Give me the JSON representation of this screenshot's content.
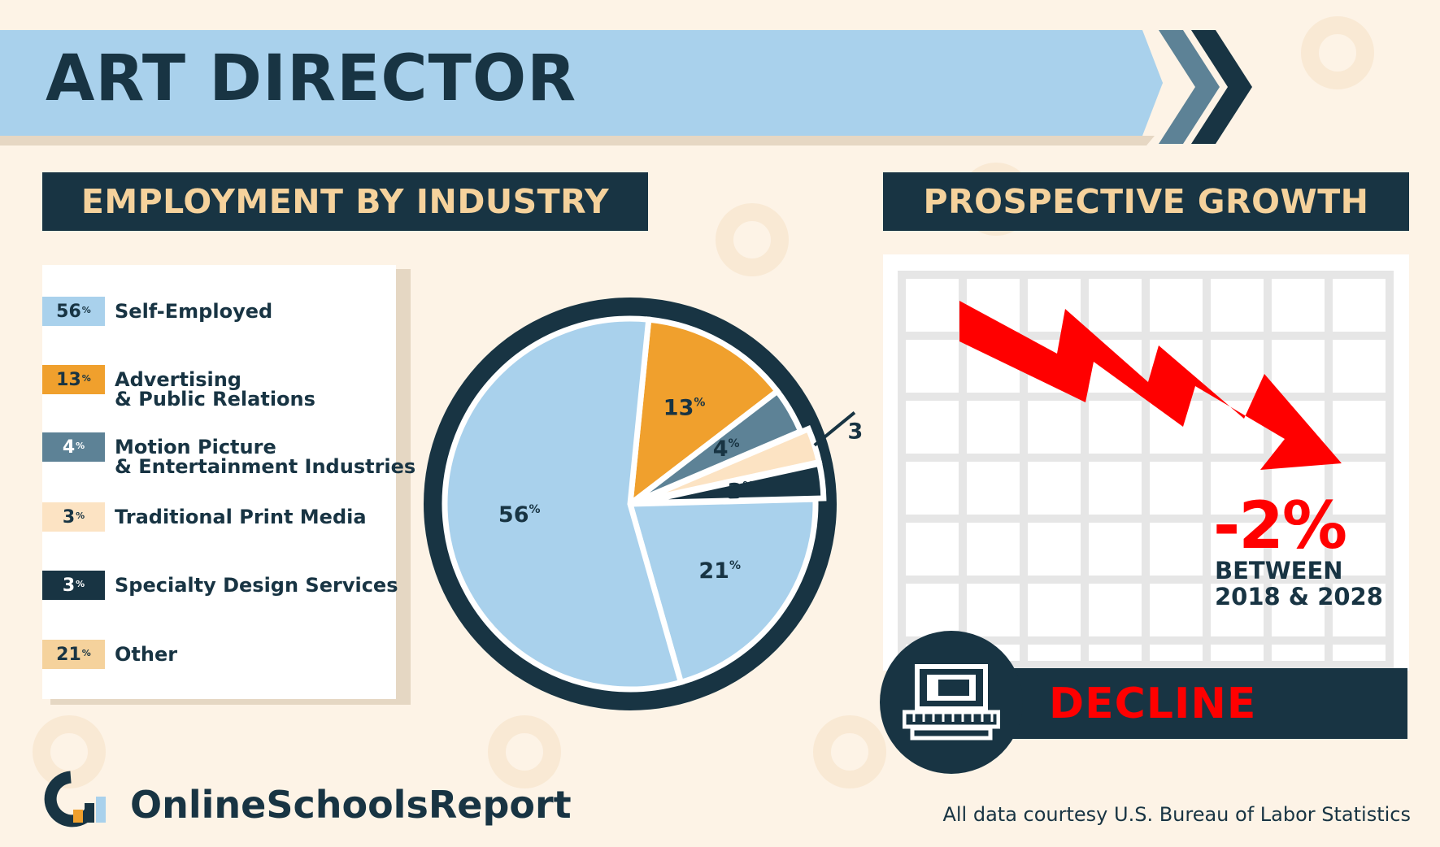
{
  "page": {
    "title": "ART DIRECTOR",
    "source": "All data courtesy U.S. Bureau of Labor Statistics",
    "brand": "OnlineSchoolsReport"
  },
  "sections": {
    "employment": "EMPLOYMENT BY INDUSTRY",
    "growth": "PROSPECTIVE GROWTH"
  },
  "growth": {
    "value": "-2%",
    "period": "BETWEEN\n2018 & 2028",
    "status": "DECLINE"
  },
  "legend": [
    {
      "pct": "56",
      "label": "Self-Employed"
    },
    {
      "pct": "13",
      "label": "Advertising\n& Public Relations"
    },
    {
      "pct": "4",
      "label": "Motion Picture\n& Entertainment Industries"
    },
    {
      "pct": "3",
      "label": "Traditional Print Media"
    },
    {
      "pct": "3",
      "label": "Specialty Design Services"
    },
    {
      "pct": "21",
      "label": "Other"
    }
  ],
  "chart_data": {
    "type": "pie",
    "title": "EMPLOYMENT BY INDUSTRY",
    "unit": "%",
    "slices": [
      {
        "name": "Self-Employed",
        "value": 56,
        "color": "#a9d1ec"
      },
      {
        "name": "Advertising & Public Relations",
        "value": 13,
        "color": "#f0a02d"
      },
      {
        "name": "Motion Picture & Entertainment Industries",
        "value": 4,
        "color": "#5d8296"
      },
      {
        "name": "Traditional Print Media",
        "value": 3,
        "color": "#fce3c3"
      },
      {
        "name": "Specialty Design Services",
        "value": 3,
        "color": "#183443"
      },
      {
        "name": "Other",
        "value": 21,
        "color": "#a9d1ec"
      }
    ],
    "legend_position": "left"
  },
  "colors": {
    "navy": "#183443",
    "light_blue": "#a9d1ec",
    "orange": "#f0a02d",
    "steel_blue": "#5d8296",
    "cream": "#fce3c3",
    "red": "#ff0000",
    "heading_text": "#f5d29c"
  },
  "icons": [
    "double-chevron-icon",
    "laptop-icon",
    "downward-trend-arrow-icon",
    "brand-logo-icon"
  ]
}
